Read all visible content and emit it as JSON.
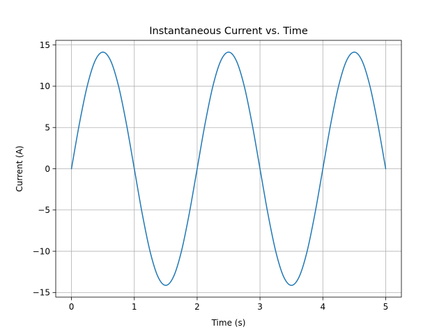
{
  "chart_data": {
    "type": "line",
    "title": "Instantaneous Current vs. Time",
    "xlabel": "Time (s)",
    "ylabel": "Current (A)",
    "xlim": [
      -0.25,
      5.25
    ],
    "ylim": [
      -15.56,
      15.56
    ],
    "xticks": [
      0,
      1,
      2,
      3,
      4,
      5
    ],
    "xtick_labels": [
      "0",
      "1",
      "2",
      "3",
      "4",
      "5"
    ],
    "yticks": [
      -15,
      -10,
      -5,
      0,
      5,
      10,
      15
    ],
    "ytick_labels": [
      "−15",
      "−10",
      "−5",
      "0",
      "5",
      "10",
      "15"
    ],
    "grid": true,
    "series": [
      {
        "color": "#1f77b4",
        "x": [
          0,
          0.125,
          0.25,
          0.375,
          0.5,
          0.625,
          0.75,
          0.875,
          1.0,
          1.125,
          1.25,
          1.375,
          1.5,
          1.625,
          1.75,
          1.875,
          2.0,
          2.125,
          2.25,
          2.375,
          2.5,
          2.625,
          2.75,
          2.875,
          3.0,
          3.125,
          3.25,
          3.375,
          3.5,
          3.625,
          3.75,
          3.875,
          4.0,
          4.125,
          4.25,
          4.375,
          4.5,
          4.625,
          4.75,
          4.875,
          5.0
        ],
        "y": [
          0,
          5.41,
          10.0,
          13.07,
          14.14,
          13.07,
          10.0,
          5.41,
          0,
          -5.41,
          -10.0,
          -13.07,
          -14.14,
          -13.07,
          -10.0,
          -5.41,
          0,
          5.41,
          10.0,
          13.07,
          14.14,
          13.07,
          10.0,
          5.41,
          0,
          -5.41,
          -10.0,
          -13.07,
          -14.14,
          -13.07,
          -10.0,
          -5.41,
          0,
          5.41,
          10.0,
          13.07,
          14.14,
          13.07,
          10.0,
          5.41,
          0
        ]
      }
    ]
  }
}
